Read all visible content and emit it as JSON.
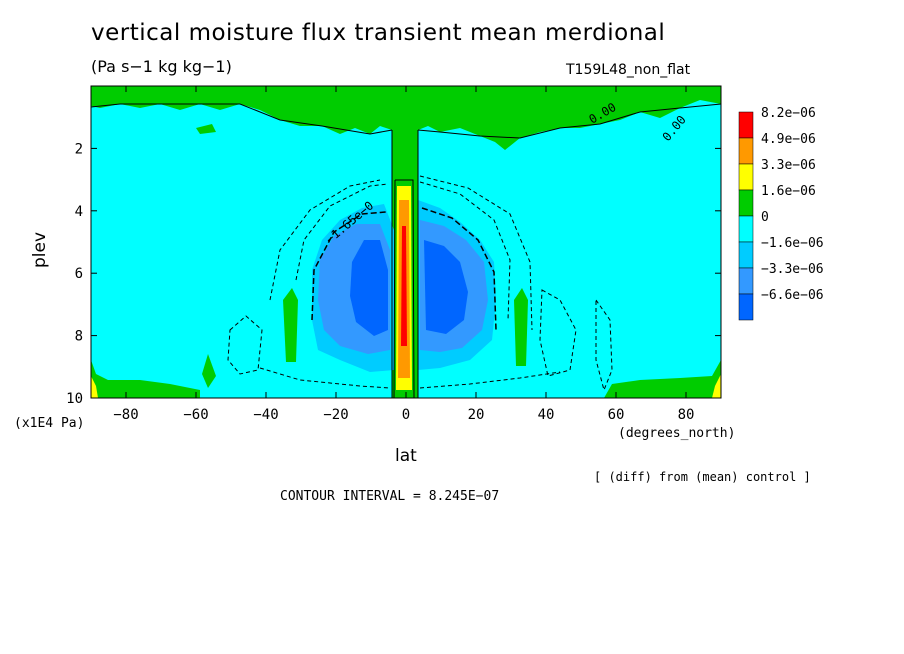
{
  "chart_data": {
    "type": "heatmap",
    "title": "vertical moisture flux transient mean merdional",
    "units": "(Pa s−1 kg kg−1)",
    "run_label": "T159L48_non_flat",
    "xlabel": "lat",
    "x_units": "(degrees_north)",
    "ylabel": "plev",
    "y_units": "(x1E4 Pa)",
    "xlim": [
      -90,
      90
    ],
    "ylim": [
      10,
      0
    ],
    "x_ticks": [
      -80,
      -60,
      -40,
      -20,
      0,
      20,
      40,
      60,
      80
    ],
    "y_ticks": [
      2,
      4,
      6,
      8,
      10
    ],
    "colorbar": {
      "labels": [
        "8.2e−06",
        "4.9e−06",
        "3.3e−06",
        "1.6e−06",
        "0",
        "−1.6e−06",
        "−3.3e−06",
        "−6.6e−06"
      ],
      "colors": [
        "#ff0000",
        "#ff9900",
        "#ffff00",
        "#00cc00",
        "#00ffff",
        "#00ccff",
        "#3399ff",
        "#0066ff"
      ]
    },
    "contour_labels": [
      "−1.65e−0",
      "0.00",
      "0.00"
    ],
    "contour_interval": "CONTOUR INTERVAL = 8.245E−07",
    "note": "[ (diff) from (mean) control ]"
  }
}
